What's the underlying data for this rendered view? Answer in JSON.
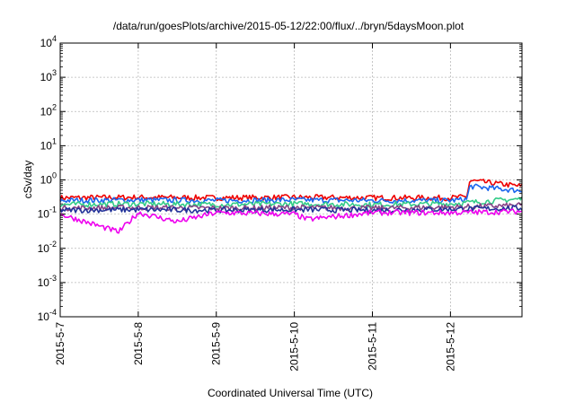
{
  "chart_data": {
    "type": "line",
    "title": "/data/run/goesPlots/archive/2015-05-12/22:00/flux/../bryn/5daysMoon.plot",
    "xlabel": "Coordinated Universal Time (UTC)",
    "ylabel": "cSv/day",
    "yscale": "log",
    "ylim": [
      0.0001,
      10000
    ],
    "xlim": [
      "2015-05-07",
      "2015-05-12 22:00"
    ],
    "grid": true,
    "x_ticks": [
      "2015-5-7",
      "2015-5-8",
      "2015-5-9",
      "2015-5-10",
      "2015-5-11",
      "2015-5-12"
    ],
    "y_ticks": [
      {
        "base": "10",
        "exp": "-4"
      },
      {
        "base": "10",
        "exp": "-3"
      },
      {
        "base": "10",
        "exp": "-2"
      },
      {
        "base": "10",
        "exp": "-1"
      },
      {
        "base": "10",
        "exp": "0"
      },
      {
        "base": "10",
        "exp": "1"
      },
      {
        "base": "10",
        "exp": "2"
      },
      {
        "base": "10",
        "exp": "3"
      },
      {
        "base": "10",
        "exp": "4"
      }
    ],
    "series": [
      {
        "color": "#ee0000",
        "x": [
          "2015-05-07",
          "2015-05-08",
          "2015-05-09",
          "2015-05-10",
          "2015-05-11",
          "2015-05-12",
          "2015-05-12 05:00",
          "2015-05-12 06:00",
          "2015-05-12 22:00"
        ],
        "values": [
          0.3,
          0.31,
          0.3,
          0.31,
          0.3,
          0.3,
          0.32,
          0.95,
          0.65
        ]
      },
      {
        "color": "#1a66ee",
        "x": [
          "2015-05-07",
          "2015-05-08",
          "2015-05-09",
          "2015-05-10",
          "2015-05-11",
          "2015-05-12",
          "2015-05-12 05:00",
          "2015-05-12 06:00",
          "2015-05-12 22:00"
        ],
        "values": [
          0.25,
          0.26,
          0.25,
          0.26,
          0.25,
          0.25,
          0.27,
          0.65,
          0.48
        ]
      },
      {
        "color": "#33cc88",
        "x": [
          "2015-05-07",
          "2015-05-08",
          "2015-05-09",
          "2015-05-10",
          "2015-05-11",
          "2015-05-12",
          "2015-05-12 22:00"
        ],
        "values": [
          0.19,
          0.2,
          0.19,
          0.2,
          0.19,
          0.2,
          0.28
        ]
      },
      {
        "color": "#884488",
        "x": [
          "2015-05-07",
          "2015-05-08",
          "2015-05-09",
          "2015-05-10",
          "2015-05-11",
          "2015-05-12",
          "2015-05-12 22:00"
        ],
        "values": [
          0.15,
          0.155,
          0.15,
          0.155,
          0.15,
          0.16,
          0.18
        ]
      },
      {
        "color": "#223399",
        "x": [
          "2015-05-07",
          "2015-05-08",
          "2015-05-09",
          "2015-05-10",
          "2015-05-11",
          "2015-05-12",
          "2015-05-12 22:00"
        ],
        "values": [
          0.13,
          0.135,
          0.13,
          0.135,
          0.13,
          0.14,
          0.15
        ]
      },
      {
        "color": "#ee00ee",
        "x": [
          "2015-05-07",
          "2015-05-07 18:00",
          "2015-05-08",
          "2015-05-08 12:00",
          "2015-05-09",
          "2015-05-10",
          "2015-05-10 04:00",
          "2015-05-11",
          "2015-05-12",
          "2015-05-12 22:00"
        ],
        "values": [
          0.1,
          0.03,
          0.11,
          0.06,
          0.11,
          0.1,
          0.07,
          0.11,
          0.11,
          0.12
        ]
      }
    ]
  }
}
